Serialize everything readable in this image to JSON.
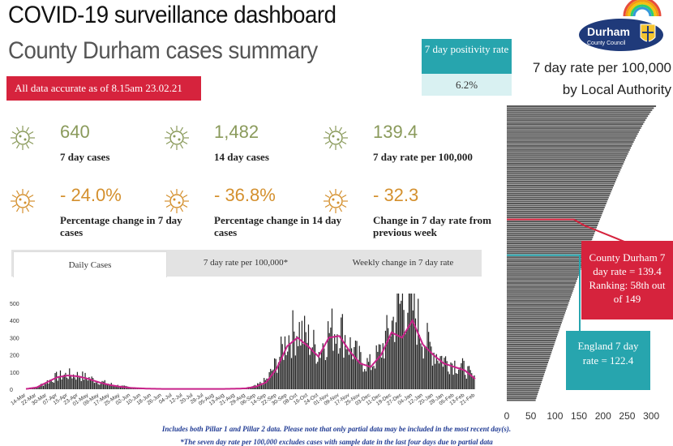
{
  "header": {
    "title": "COVID-19 surveillance dashboard",
    "subtitle": "County Durham cases summary",
    "banner": "All data accurate as of 8.15am 23.02.21"
  },
  "positivity": {
    "label": "7 day positivity rate",
    "value": "6.2%"
  },
  "logo": {
    "name": "Durham",
    "sub": "County Council"
  },
  "kpis": [
    {
      "value": "640",
      "label": "7 day cases",
      "color": "#8a9a5b"
    },
    {
      "value": "1,482",
      "label": "14 day cases",
      "color": "#8a9a5b"
    },
    {
      "value": "139.4",
      "label": "7 day rate per 100,000",
      "color": "#8a9a5b"
    },
    {
      "value": "- 24.0%",
      "label": "Percentage change in 7 day cases",
      "color": "#d4902e"
    },
    {
      "value": "- 36.8%",
      "label": "Percentage change in 14 day cases",
      "color": "#d4902e"
    },
    {
      "value": "- 32.3",
      "label": "Change in 7 day rate from previous week",
      "color": "#d4902e"
    }
  ],
  "tabs": [
    "Daily Cases",
    "7 day rate per 100,000*",
    "Weekly change in 7 day rate"
  ],
  "rate_panel": {
    "title_line1": "7 day rate per 100,000",
    "title_line2": "by Local Authority",
    "durham_callout": "County Durham 7 day rate = 139.4 Ranking: 58th out of 149",
    "england_callout": "England 7 day rate = 122.4",
    "colors": {
      "durham": "#d6233d",
      "england": "#27a5ae"
    }
  },
  "footer": {
    "note1": "Includes both Pillar 1 and Pillar 2 data. Please note that only partial data may be included in the most recent day(s).",
    "note2": "*The seven day rate per 100,000 excludes cases with sample date in the last four days due to partial data"
  },
  "chart_data": [
    {
      "type": "bar",
      "title": "Daily Cases",
      "ylim": [
        0,
        500
      ],
      "yticks": [
        0,
        100,
        200,
        300,
        400,
        500
      ],
      "x_tick_labels": [
        "14-Mar",
        "22-Mar",
        "30-Mar",
        "07-Apr",
        "15-Apr",
        "23-Apr",
        "01-May",
        "09-May",
        "17-May",
        "25-May",
        "02-Jun",
        "10-Jun",
        "18-Jun",
        "26-Jun",
        "04-Jul",
        "12-Jul",
        "20-Jul",
        "28-Jul",
        "05-Aug",
        "13-Aug",
        "21-Aug",
        "29-Aug",
        "06-Sep",
        "14-Sep",
        "22-Sep",
        "30-Sep",
        "08-Oct",
        "16-Oct",
        "24-Oct",
        "01-Nov",
        "09-Nov",
        "17-Nov",
        "25-Nov",
        "03-Dec",
        "11-Dec",
        "19-Dec",
        "27-Dec",
        "04-Jan",
        "12-Jan",
        "20-Jan",
        "28-Jan",
        "05-Feb",
        "13-Feb",
        "21-Feb"
      ],
      "weekly_avg": [
        2,
        10,
        40,
        70,
        80,
        75,
        60,
        40,
        25,
        15,
        8,
        5,
        3,
        2,
        2,
        2,
        2,
        2,
        2,
        2,
        3,
        5,
        15,
        40,
        120,
        250,
        300,
        250,
        190,
        300,
        310,
        220,
        150,
        130,
        200,
        330,
        300,
        400,
        260,
        200,
        150,
        130,
        110,
        60
      ],
      "series": [
        {
          "name": "Daily cases",
          "values": [
            2,
            12,
            45,
            75,
            85,
            80,
            65,
            45,
            30,
            18,
            10,
            6,
            4,
            3,
            2,
            2,
            2,
            2,
            3,
            3,
            4,
            6,
            20,
            55,
            160,
            300,
            350,
            290,
            220,
            340,
            360,
            250,
            170,
            140,
            230,
            380,
            520,
            480,
            300,
            220,
            170,
            150,
            120,
            50
          ]
        },
        {
          "name": "7 day average",
          "values": [
            2,
            10,
            40,
            70,
            80,
            75,
            60,
            40,
            25,
            15,
            8,
            5,
            3,
            2,
            2,
            2,
            2,
            2,
            2,
            2,
            3,
            5,
            15,
            40,
            120,
            250,
            300,
            250,
            190,
            300,
            310,
            220,
            150,
            130,
            200,
            330,
            300,
            400,
            260,
            200,
            150,
            130,
            110,
            60
          ]
        }
      ]
    },
    {
      "type": "bar",
      "title": "7 day rate per 100,000 by Local Authority",
      "xticks": [
        0,
        50,
        100,
        150,
        200,
        250,
        300
      ],
      "xlim": [
        0,
        320
      ],
      "count": 149,
      "max": 310,
      "min": 60,
      "highlight": [
        {
          "name": "County Durham",
          "value": 139.4,
          "rank": 58
        },
        {
          "name": "England",
          "value": 122.4
        }
      ]
    }
  ]
}
